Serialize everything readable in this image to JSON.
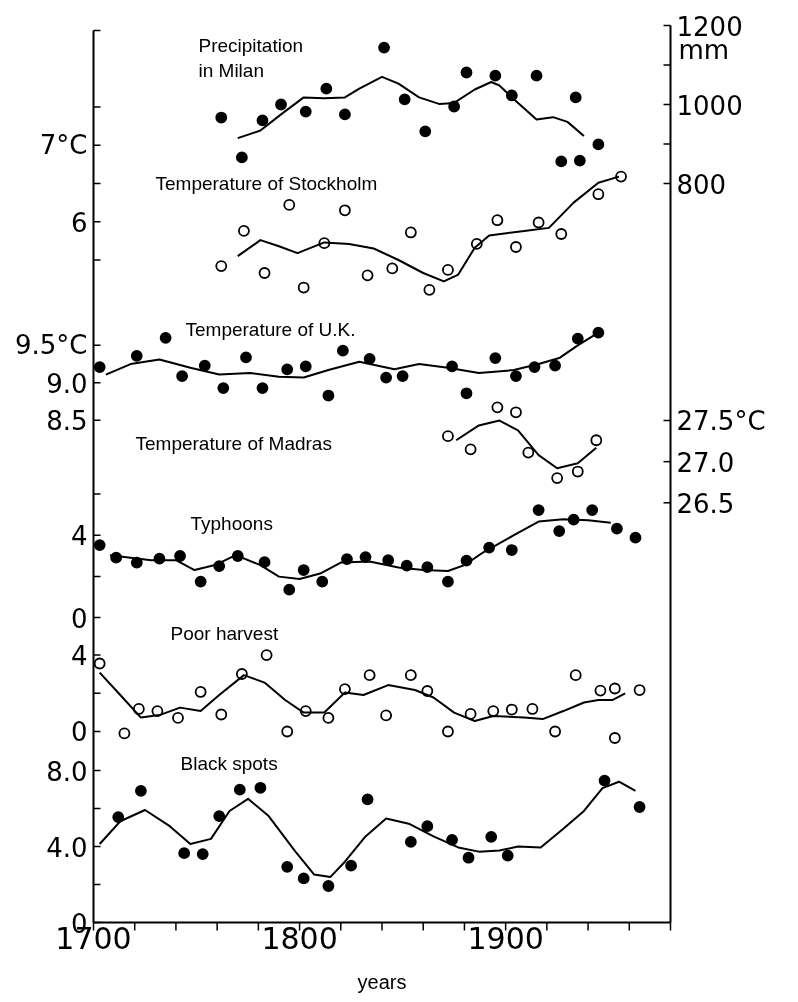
{
  "chart_data": [
    {
      "type": "scatter",
      "title": "Precipitation\nin Milan",
      "xlim": [
        1700,
        1980
      ],
      "y2lim": [
        800,
        1200
      ],
      "y2ticks": [
        1200,
        {
          "value": 1100,
          "label": null
        },
        1000,
        {
          "value": 900,
          "label": null
        },
        800
      ],
      "y2label": "mm",
      "tick_labels": "y",
      "series": [
        {
          "type": "scatter",
          "axis": "y2",
          "marker": "circle",
          "color": "#000000",
          "x": [
            1762,
            1772,
            1782,
            1791,
            1803,
            1813,
            1822,
            1841,
            1851,
            1861,
            1875,
            1881,
            1895,
            1903,
            1915,
            1927,
            1934,
            1936,
            1945
          ],
          "values": [
            967,
            866,
            960,
            1000,
            982,
            1040,
            975,
            1144,
            1013,
            932,
            995,
            1081,
            1073,
            1023,
            1073,
            856,
            1018,
            858,
            899
          ]
        },
        {
          "type": "line",
          "axis": "y2",
          "color": "#000000",
          "x": [
            1770,
            1781,
            1791,
            1802,
            1812,
            1822,
            1829,
            1840,
            1848,
            1858,
            1868,
            1875,
            1885,
            1893,
            1897,
            1904,
            1915,
            1923,
            1930,
            1938
          ],
          "values": [
            915,
            934,
            975,
            1018,
            1016,
            1018,
            1040,
            1070,
            1053,
            1018,
            1001,
            1004,
            1038,
            1057,
            1048,
            1013,
            962,
            968,
            956,
            920
          ]
        }
      ]
    },
    {
      "type": "scatter",
      "title": "Temperature of Stockholm",
      "xlim": [
        1700,
        1980
      ],
      "ylim": [
        -3.16,
        8.5
      ],
      "yticks": [
        {
          "value": 8.5,
          "label": null
        },
        {
          "value": 7.5,
          "label": null
        },
        {
          "value": 7,
          "label": "7°C"
        },
        {
          "value": 6.5,
          "label": null
        },
        6,
        {
          "value": 5.5,
          "label": null
        }
      ],
      "tick_labels": "y",
      "series": [
        {
          "type": "scatter",
          "marker": "circle_open",
          "color": "#000000",
          "x": [
            1762,
            1773,
            1783,
            1795,
            1802,
            1812,
            1822,
            1833,
            1845,
            1854,
            1863,
            1872,
            1886,
            1896,
            1905,
            1916,
            1927,
            1945,
            1956
          ],
          "values": [
            5.42,
            5.88,
            5.33,
            6.22,
            5.14,
            5.72,
            6.15,
            5.3,
            5.39,
            5.86,
            5.11,
            5.37,
            5.71,
            6.02,
            5.67,
            5.99,
            5.84,
            6.36,
            6.59
          ]
        },
        {
          "type": "line",
          "color": "#000000",
          "x": [
            1770,
            1781,
            1790,
            1799,
            1812,
            1824,
            1836,
            1848,
            1860,
            1870,
            1877,
            1885,
            1892,
            1909,
            1921,
            1933,
            1945,
            1955
          ],
          "values": [
            5.55,
            5.76,
            5.68,
            5.59,
            5.73,
            5.71,
            5.65,
            5.5,
            5.33,
            5.22,
            5.31,
            5.66,
            5.82,
            5.88,
            5.92,
            6.25,
            6.51,
            6.59
          ]
        }
      ]
    },
    {
      "type": "scatter",
      "title": "Temperature of U.K.",
      "xlim": [
        1700,
        1980
      ],
      "ylim": [
        1.8,
        13.7
      ],
      "yticks": [
        {
          "value": 9.5,
          "label": "9.5°C"
        },
        {
          "value": 9.0,
          "label": "9.0"
        },
        8.5
      ],
      "tick_labels": "y",
      "series": [
        {
          "type": "scatter",
          "marker": "circle",
          "color": "#000000",
          "x": [
            1703,
            1721,
            1735,
            1743,
            1754,
            1763,
            1774,
            1782,
            1794,
            1803,
            1814,
            1821,
            1834,
            1842,
            1850,
            1874,
            1881,
            1895,
            1905,
            1914,
            1924,
            1935,
            1945
          ],
          "values": [
            9.21,
            9.36,
            9.6,
            9.09,
            9.23,
            8.93,
            9.34,
            8.93,
            9.18,
            9.22,
            8.83,
            9.43,
            9.32,
            9.07,
            9.09,
            9.22,
            8.86,
            9.33,
            9.09,
            9.21,
            9.23,
            9.59,
            9.67
          ]
        },
        {
          "type": "line",
          "color": "#000000",
          "x": [
            1706,
            1718,
            1732,
            1747,
            1761,
            1776,
            1790,
            1802,
            1814,
            1829,
            1846,
            1858,
            1872,
            1887,
            1904,
            1916,
            1926,
            1935,
            1945
          ],
          "values": [
            9.11,
            9.25,
            9.31,
            9.2,
            9.11,
            9.13,
            9.08,
            9.07,
            9.17,
            9.28,
            9.18,
            9.25,
            9.2,
            9.13,
            9.17,
            9.25,
            9.33,
            9.5,
            9.67
          ]
        }
      ]
    },
    {
      "type": "scatter",
      "title": "Temperature of Madras",
      "xlim": [
        1700,
        1980
      ],
      "y2lim": [
        21.4,
        32.3
      ],
      "y2ticks": [
        {
          "value": 27.5,
          "label": "27.5°C"
        },
        {
          "value": 27.0,
          "label": "27.0"
        },
        26.5
      ],
      "tick_labels": "y",
      "series": [
        {
          "type": "scatter",
          "axis": "y2",
          "marker": "circle_open",
          "color": "#000000",
          "x": [
            1872,
            1883,
            1896,
            1905,
            1911,
            1925,
            1935,
            1944
          ],
          "values": [
            27.31,
            27.15,
            27.66,
            27.6,
            27.11,
            26.8,
            26.88,
            27.26
          ]
        },
        {
          "type": "line",
          "axis": "y2",
          "color": "#000000",
          "x": [
            1876,
            1887,
            1897,
            1906,
            1916,
            1925,
            1935,
            1944
          ],
          "values": [
            27.26,
            27.44,
            27.5,
            27.38,
            27.08,
            26.92,
            26.98,
            27.17
          ]
        }
      ]
    },
    {
      "type": "scatter",
      "title": "Typhoons",
      "xlim": [
        1700,
        1980
      ],
      "ylim": [
        -14.8,
        28.5
      ],
      "yticks": [
        {
          "value": 6,
          "label": null
        },
        4,
        {
          "value": 2,
          "label": null
        },
        0
      ],
      "tick_labels": "y",
      "series": [
        {
          "type": "scatter",
          "marker": "circle",
          "color": "#000000",
          "x": [
            1703,
            1711,
            1721,
            1732,
            1742,
            1752,
            1761,
            1770,
            1783,
            1795,
            1802,
            1811,
            1823,
            1832,
            1843,
            1852,
            1862,
            1872,
            1881,
            1892,
            1903,
            1916,
            1926,
            1933,
            1942,
            1954,
            1963
          ],
          "values": [
            3.52,
            2.91,
            2.67,
            2.86,
            2.99,
            1.75,
            2.5,
            2.99,
            2.69,
            1.36,
            2.31,
            1.75,
            2.84,
            2.94,
            2.79,
            2.52,
            2.45,
            1.75,
            2.77,
            3.4,
            3.28,
            5.22,
            4.2,
            4.76,
            5.22,
            4.32,
            3.88
          ]
        },
        {
          "type": "line",
          "color": "#000000",
          "x": [
            1708,
            1718,
            1728,
            1740,
            1749,
            1759,
            1769,
            1781,
            1790,
            1800,
            1810,
            1820,
            1834,
            1848,
            1860,
            1872,
            1880,
            1889,
            1904,
            1916,
            1928,
            1940,
            1951
          ],
          "values": [
            3.03,
            2.91,
            2.79,
            2.79,
            2.31,
            2.55,
            3.03,
            2.55,
            1.99,
            1.87,
            2.14,
            2.67,
            2.72,
            2.43,
            2.31,
            2.26,
            2.55,
            3.16,
            4.0,
            4.66,
            4.78,
            4.73,
            4.61
          ]
        }
      ]
    },
    {
      "type": "scatter",
      "title": "Poor harvest",
      "xlim": [
        1700,
        1980
      ],
      "ylim": [
        -10.0,
        36.7
      ],
      "yticks": [
        4,
        {
          "value": 2,
          "label": null
        },
        0
      ],
      "tick_labels": "y",
      "series": [
        {
          "type": "scatter",
          "marker": "circle_open",
          "color": "#000000",
          "x": [
            1703,
            1715,
            1722,
            1731,
            1741,
            1752,
            1762,
            1772,
            1784,
            1794,
            1803,
            1814,
            1822,
            1834,
            1842,
            1854,
            1862,
            1872,
            1883,
            1894,
            1903,
            1913,
            1924,
            1934,
            1946,
            1953,
            1953,
            1965
          ],
          "values": [
            3.56,
            -0.1,
            1.18,
            1.07,
            0.71,
            2.07,
            0.89,
            3.01,
            4.0,
            0.0,
            1.07,
            0.71,
            2.22,
            2.95,
            0.84,
            2.95,
            2.12,
            0.0,
            0.92,
            1.07,
            1.15,
            1.18,
            0.0,
            2.95,
            2.14,
            2.25,
            -0.34,
            2.17
          ]
        },
        {
          "type": "line",
          "color": "#000000",
          "x": [
            1703,
            1713,
            1723,
            1732,
            1742,
            1752,
            1761,
            1773,
            1783,
            1793,
            1802,
            1812,
            1822,
            1831,
            1843,
            1856,
            1865,
            1875,
            1885,
            1894,
            1909,
            1918,
            1928,
            1938,
            1945,
            1952,
            1958
          ],
          "values": [
            3.08,
            1.91,
            0.73,
            0.86,
            1.25,
            1.07,
            1.91,
            2.95,
            2.56,
            1.65,
            0.99,
            0.99,
            2.04,
            1.91,
            2.43,
            2.17,
            1.78,
            0.99,
            0.55,
            0.81,
            0.73,
            0.65,
            1.07,
            1.52,
            1.65,
            1.65,
            1.99
          ]
        }
      ]
    },
    {
      "type": "scatter",
      "title": "Black spots",
      "xlabel": "years",
      "xlim": [
        1700,
        1980
      ],
      "xticks": [
        1700,
        {
          "value": 1720,
          "label": null
        },
        {
          "value": 1740,
          "label": null
        },
        {
          "value": 1760,
          "label": null
        },
        {
          "value": 1780,
          "label": null
        },
        1800,
        {
          "value": 1820,
          "label": null
        },
        {
          "value": 1840,
          "label": null
        },
        {
          "value": 1860,
          "label": null
        },
        {
          "value": 1880,
          "label": null
        },
        1900,
        {
          "value": 1920,
          "label": null
        },
        {
          "value": 1940,
          "label": null
        },
        {
          "value": 1960,
          "label": null
        },
        {
          "value": 1980,
          "label": null
        }
      ],
      "ylim": [
        0,
        8
      ],
      "yticks": [
        {
          "value": 8,
          "label": "8.0"
        },
        {
          "value": 6,
          "label": null
        },
        {
          "value": 4,
          "label": "4.0"
        },
        {
          "value": 2,
          "label": null
        },
        0
      ],
      "series": [
        {
          "type": "scatter",
          "marker": "circle",
          "color": "#000000",
          "x": [
            1712,
            1723,
            1744,
            1753,
            1761,
            1771,
            1781,
            1794,
            1802,
            1814,
            1825,
            1833,
            1854,
            1862,
            1874,
            1882,
            1893,
            1901,
            1948,
            1965
          ],
          "values": [
            5.55,
            6.93,
            3.65,
            3.6,
            5.6,
            6.99,
            7.09,
            2.93,
            2.32,
            1.92,
            2.99,
            6.48,
            4.24,
            5.07,
            4.35,
            3.41,
            4.51,
            3.52,
            7.47,
            6.08
          ]
        },
        {
          "type": "line",
          "color": "#000000",
          "x": [
            1703,
            1713,
            1725,
            1737,
            1747,
            1757,
            1766,
            1775,
            1785,
            1798,
            1807,
            1815,
            1822,
            1832,
            1842,
            1853,
            1865,
            1877,
            1887,
            1897,
            1906,
            1917,
            1928,
            1938,
            1947,
            1955,
            1963
          ],
          "values": [
            4.13,
            5.33,
            5.92,
            5.07,
            4.13,
            4.4,
            5.87,
            6.51,
            5.6,
            3.73,
            2.53,
            2.4,
            3.2,
            4.53,
            5.47,
            5.2,
            4.53,
            3.95,
            3.73,
            3.79,
            4.0,
            3.95,
            4.93,
            5.87,
            7.07,
            7.41,
            6.93
          ]
        }
      ]
    }
  ]
}
